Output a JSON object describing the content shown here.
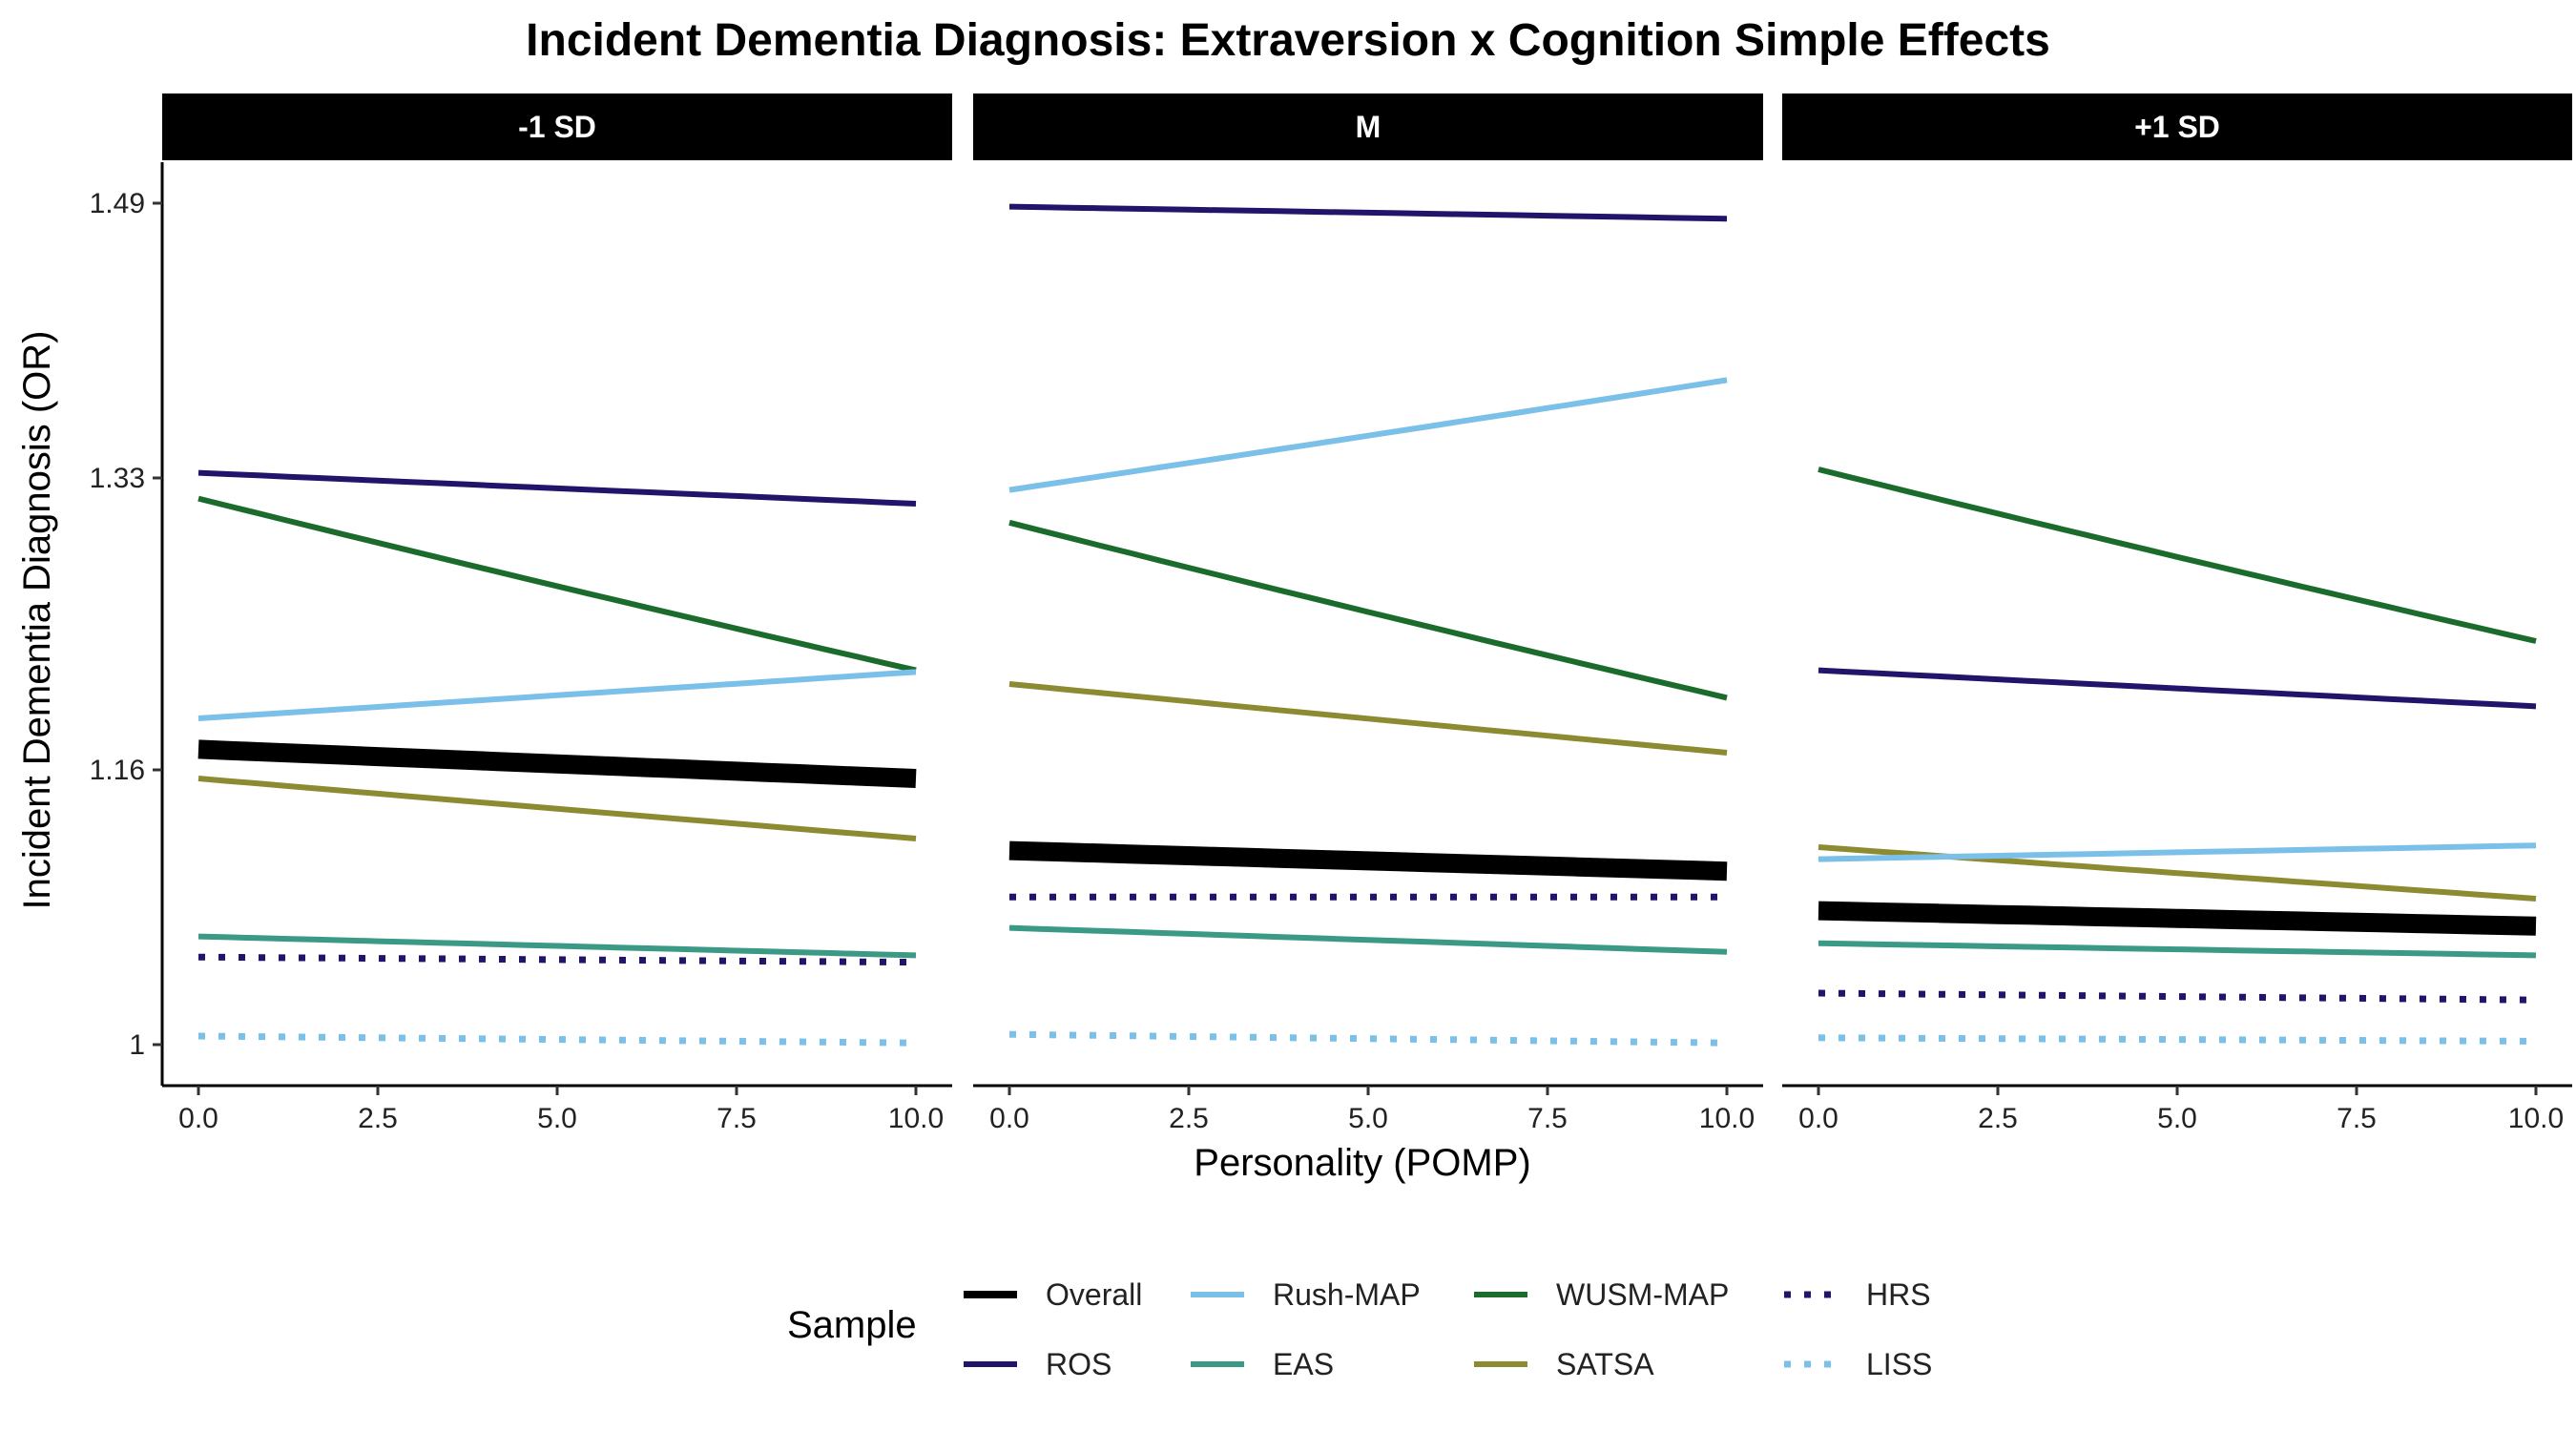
{
  "chart_data": {
    "type": "line",
    "title": "Incident Dementia Diagnosis: Extraversion x Cognition Simple Effects",
    "xlabel": "Personality (POMP)",
    "ylabel": "Incident Dementia Diagnosis (OR)",
    "x_ticks": [
      "0.0",
      "2.5",
      "5.0",
      "7.5",
      "10.0"
    ],
    "y_ticks": [
      "1",
      "1.16",
      "1.33",
      "1.49"
    ],
    "xlim": [
      0,
      10
    ],
    "ylim": [
      1,
      1.49
    ],
    "legend": {
      "title": "Sample",
      "position": "bottom",
      "entries": [
        {
          "name": "Overall",
          "color": "#000000",
          "style": "thick"
        },
        {
          "name": "ROS",
          "color": "#21156b",
          "style": "solid"
        },
        {
          "name": "Rush-MAP",
          "color": "#7bc0e8",
          "style": "solid"
        },
        {
          "name": "EAS",
          "color": "#3a9a86",
          "style": "solid"
        },
        {
          "name": "WUSM-MAP",
          "color": "#1b6b2c",
          "style": "solid"
        },
        {
          "name": "SATSA",
          "color": "#8c8b32",
          "style": "solid"
        },
        {
          "name": "HRS",
          "color": "#21156b",
          "style": "dotted"
        },
        {
          "name": "LISS",
          "color": "#7bc0e8",
          "style": "dotted"
        }
      ]
    },
    "panels": [
      {
        "label": "-1 SD",
        "series": [
          {
            "name": "ROS",
            "start": 1.333,
            "end": 1.315
          },
          {
            "name": "WUSM-MAP",
            "start": 1.318,
            "end": 1.218
          },
          {
            "name": "Rush-MAP",
            "start": 1.19,
            "end": 1.217
          },
          {
            "name": "Overall",
            "start": 1.172,
            "end": 1.155
          },
          {
            "name": "SATSA",
            "start": 1.155,
            "end": 1.12
          },
          {
            "name": "EAS",
            "start": 1.063,
            "end": 1.052
          },
          {
            "name": "HRS",
            "start": 1.051,
            "end": 1.048
          },
          {
            "name": "LISS",
            "start": 1.005,
            "end": 1.001
          }
        ]
      },
      {
        "label": "M",
        "series": [
          {
            "name": "ROS",
            "start": 1.488,
            "end": 1.481
          },
          {
            "name": "Rush-MAP",
            "start": 1.323,
            "end": 1.387
          },
          {
            "name": "WUSM-MAP",
            "start": 1.304,
            "end": 1.202
          },
          {
            "name": "SATSA",
            "start": 1.21,
            "end": 1.17
          },
          {
            "name": "Overall",
            "start": 1.113,
            "end": 1.101
          },
          {
            "name": "HRS",
            "start": 1.086,
            "end": 1.086
          },
          {
            "name": "EAS",
            "start": 1.068,
            "end": 1.054
          },
          {
            "name": "LISS",
            "start": 1.006,
            "end": 1.001
          }
        ]
      },
      {
        "label": "+1 SD",
        "series": [
          {
            "name": "WUSM-MAP",
            "start": 1.335,
            "end": 1.235
          },
          {
            "name": "ROS",
            "start": 1.218,
            "end": 1.197
          },
          {
            "name": "SATSA",
            "start": 1.115,
            "end": 1.085
          },
          {
            "name": "Rush-MAP",
            "start": 1.108,
            "end": 1.116
          },
          {
            "name": "Overall",
            "start": 1.078,
            "end": 1.069
          },
          {
            "name": "EAS",
            "start": 1.059,
            "end": 1.052
          },
          {
            "name": "HRS",
            "start": 1.03,
            "end": 1.026
          },
          {
            "name": "LISS",
            "start": 1.004,
            "end": 1.002
          }
        ]
      }
    ]
  }
}
